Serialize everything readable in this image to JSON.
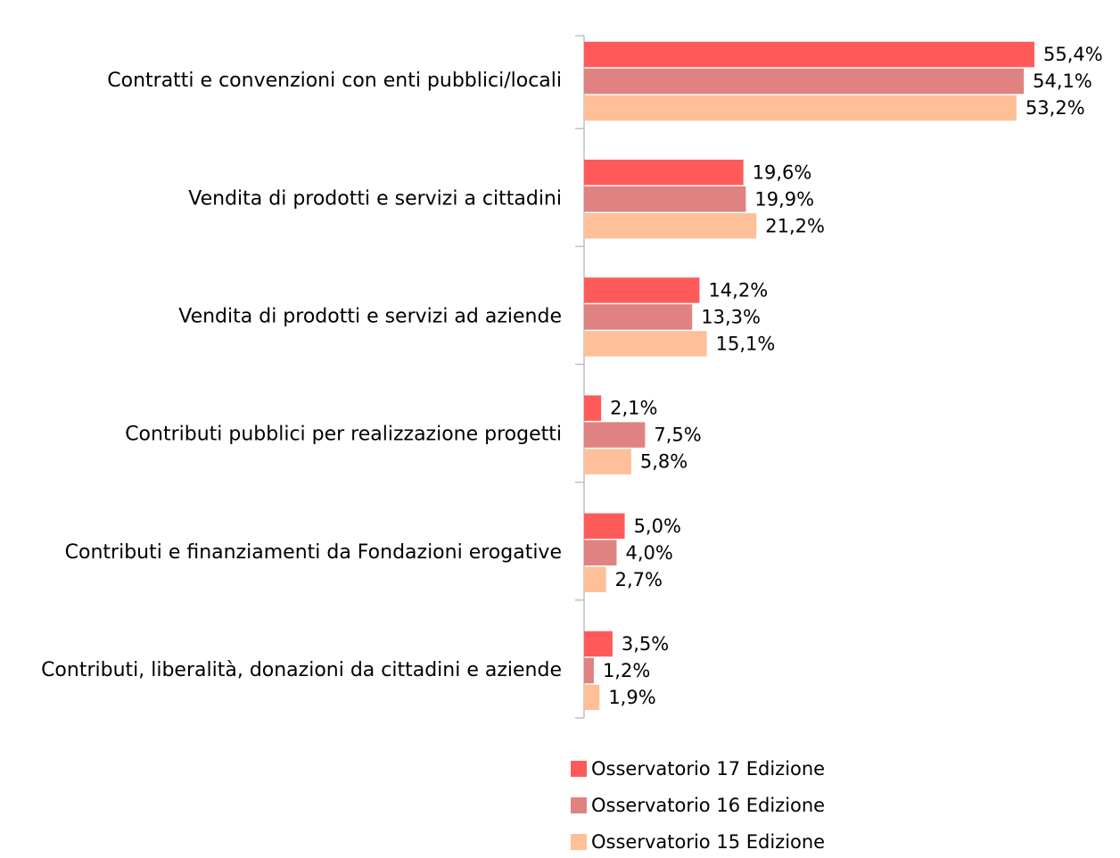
{
  "chart_data": {
    "type": "bar",
    "orientation": "horizontal",
    "categories": [
      "Contratti e convenzioni con enti pubblici/locali",
      "Vendita di prodotti e servizi a cittadini",
      "Vendita di prodotti e servizi ad aziende",
      "Contributi pubblici per realizzazione progetti",
      "Contributi e finanziamenti da Fondazioni erogative",
      "Contributi, liberalità, donazioni da cittadini e aziende"
    ],
    "series": [
      {
        "name": "Osservatorio 17 Edizione",
        "color": "#ff5a5a",
        "values": [
          55.4,
          19.6,
          14.2,
          2.1,
          5.0,
          3.5
        ],
        "value_labels": [
          "55,4%",
          "19,6%",
          "14,2%",
          "2,1%",
          "5,0%",
          "3,5%"
        ]
      },
      {
        "name": "Osservatorio 16 Edizione",
        "color": "#e08282",
        "values": [
          54.1,
          19.9,
          13.3,
          7.5,
          4.0,
          1.2
        ],
        "value_labels": [
          "54,1%",
          "19,9%",
          "13,3%",
          "7,5%",
          "4,0%",
          "1,2%"
        ]
      },
      {
        "name": "Osservatorio 15 Edizione",
        "color": "#ffbf99",
        "values": [
          53.2,
          21.2,
          15.1,
          5.8,
          2.7,
          1.9
        ],
        "value_labels": [
          "53,2%",
          "21,2%",
          "15,1%",
          "5,8%",
          "2,7%",
          "1,9%"
        ]
      }
    ],
    "legend": "bottom"
  }
}
